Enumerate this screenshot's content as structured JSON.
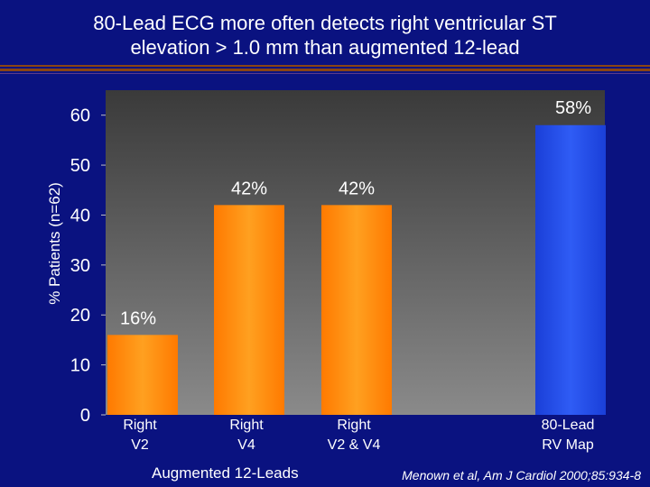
{
  "title_line1": "80-Lead ECG more often detects right ventricular ST",
  "title_line2": "elevation > 1.0 mm than augmented 12-lead",
  "footer": {
    "group_label": "Augmented 12-Leads",
    "citation": "Menown et al, Am J Cardiol 2000;85:934-8"
  },
  "colors": {
    "background": "#0a1280",
    "plot_area": "#808080",
    "bar_orange": "#ff8a00",
    "bar_blue": "#1f47e6",
    "rule_brown": "#8b4513"
  },
  "chart_data": {
    "type": "bar",
    "title": "80-Lead ECG more often detects right ventricular ST elevation > 1.0 mm than augmented 12-lead",
    "ylabel": "% Patients (n=62)",
    "xlabel": "",
    "ylim": [
      0,
      65
    ],
    "yticks": [
      0,
      10,
      20,
      30,
      40,
      50,
      60
    ],
    "grid": false,
    "legend": "none",
    "categories": [
      "Right V2",
      "Right V4",
      "Right V2 & V4",
      "80-Lead RV Map"
    ],
    "category_lines": [
      [
        "Right",
        "V2"
      ],
      [
        "Right",
        "V4"
      ],
      [
        "Right",
        "V2 & V4"
      ],
      [
        "80-Lead",
        "RV Map"
      ]
    ],
    "values": [
      16,
      42,
      42,
      58
    ],
    "data_labels": [
      "16%",
      "42%",
      "42%",
      "58%"
    ],
    "bar_colors": [
      "#ff8a00",
      "#ff8a00",
      "#ff8a00",
      "#1f47e6"
    ]
  }
}
